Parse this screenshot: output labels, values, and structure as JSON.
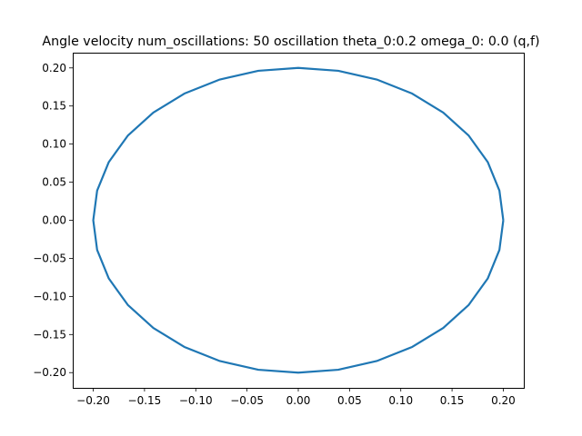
{
  "chart_data": {
    "type": "line",
    "title": "Angle velocity num_oscillations: 50 oscillation theta_0:0.2 omega_0: 0.0 (q,f)",
    "xlabel": "",
    "ylabel": "",
    "xlim": [
      -0.22,
      0.22
    ],
    "ylim": [
      -0.22,
      0.22
    ],
    "x_ticks": [
      -0.2,
      -0.15,
      -0.1,
      -0.05,
      0.0,
      0.05,
      0.1,
      0.15,
      0.2
    ],
    "y_ticks": [
      -0.2,
      -0.15,
      -0.1,
      -0.05,
      0.0,
      0.05,
      0.1,
      0.15,
      0.2
    ],
    "x_tick_labels": [
      "−0.20",
      "−0.15",
      "−0.10",
      "−0.05",
      "0.00",
      "0.05",
      "0.10",
      "0.15",
      "0.20"
    ],
    "y_tick_labels": [
      "−0.20",
      "−0.15",
      "−0.10",
      "−0.05",
      "0.00",
      "0.05",
      "0.10",
      "0.15",
      "0.20"
    ],
    "grid": false,
    "series": [
      {
        "color": "#1f77b4",
        "x": [
          0.2,
          0.1962,
          0.1848,
          0.1663,
          0.1414,
          0.1111,
          0.0765,
          0.039,
          0.0,
          -0.039,
          -0.0765,
          -0.1111,
          -0.1414,
          -0.1663,
          -0.1848,
          -0.1962,
          -0.2,
          -0.1962,
          -0.1848,
          -0.1663,
          -0.1414,
          -0.1111,
          -0.0765,
          -0.039,
          0.0,
          0.039,
          0.0765,
          0.1111,
          0.1414,
          0.1663,
          0.1848,
          0.1962,
          0.2
        ],
        "y": [
          0.0,
          0.039,
          0.0765,
          0.1111,
          0.1414,
          0.1663,
          0.1848,
          0.1962,
          0.2,
          0.1962,
          0.1848,
          0.1663,
          0.1414,
          0.1111,
          0.0765,
          0.039,
          0.0,
          -0.039,
          -0.0765,
          -0.1111,
          -0.1414,
          -0.1663,
          -0.1848,
          -0.1962,
          -0.2,
          -0.1962,
          -0.1848,
          -0.1663,
          -0.1414,
          -0.1111,
          -0.0765,
          -0.039,
          0.0
        ]
      }
    ]
  }
}
